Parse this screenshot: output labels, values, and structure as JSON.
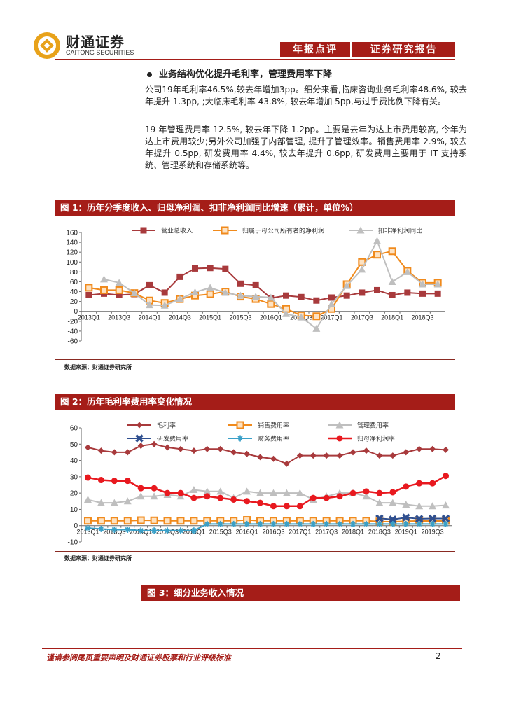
{
  "header": {
    "company_name": "财通证券",
    "company_sub": "CAITONG SECURITIES",
    "tag_left": "年报点评",
    "tag_right": "证券研究报告"
  },
  "section": {
    "heading": "业务结构优化提升毛利率，管理费用率下降",
    "para1": "公司19年毛利率46.5%,较去年增加3pp。细分来看,临床咨询业务毛利率48.6%, 较去年提升 1.3pp, ;大临床毛利率 43.8%, 较去年增加 5pp,与过手费比例下降有关。",
    "para2": "19 年管理费用率 12.5%, 较去年下降 1.2pp。主要是去年为达上市费用较高, 今年为达上市费用较少;另外公司加强了内部管理, 提升了管理效率。销售费用率 2.9%, 较去年提升 0.5pp, 研发费用率 4.4%, 较去年提升 0.6pp, 研发费用主要用于 IT 支持系统、管理系统和存储系统等。"
  },
  "figure1": {
    "title": "图 1：历年分季度收入、归母净利润、扣非净利润同比增速（累计，单位%）",
    "source": "数据来源：财通证券研究所"
  },
  "figure2": {
    "title": "图 2：历年毛利率费用率变化情况",
    "source": "数据来源：财通证券研究所"
  },
  "figure3": {
    "title": "图 3：细分业务收入情况"
  },
  "footer": {
    "disclaimer": "谨请参阅尾页重要声明及财通证券股票和行业评级标准",
    "page": "2"
  },
  "colors": {
    "brand": "#a51d18",
    "revenue": "#a83a3c",
    "netprofit": "#f08a1c",
    "gray": "#bfbfbf",
    "rd": "#2f4f8f",
    "finance": "#3aa0c8",
    "red": "#e8191f"
  },
  "chart_data": [
    {
      "type": "line",
      "title": "历年分季度收入、归母净利润、扣非净利润同比增速（累计，单位%）",
      "xlabel": "",
      "ylabel": "",
      "ylim": [
        -60,
        160
      ],
      "yticks": [
        -60,
        -40,
        -20,
        0,
        20,
        40,
        60,
        80,
        100,
        120,
        140,
        160
      ],
      "categories": [
        "2013Q1",
        "2013Q2",
        "2013Q3",
        "2013Q4",
        "2014Q1",
        "2014Q2",
        "2014Q3",
        "2014Q4",
        "2015Q1",
        "2015Q2",
        "2015Q3",
        "2015Q4",
        "2016Q1",
        "2016Q2",
        "2016Q3",
        "2016Q4",
        "2017Q1",
        "2017Q2",
        "2017Q3",
        "2017Q4",
        "2018Q1",
        "2018Q2",
        "2018Q3",
        "2018Q4"
      ],
      "tick_labels": [
        "2013Q1",
        "",
        "2013Q3",
        "",
        "2014Q1",
        "",
        "2014Q3",
        "",
        "2015Q1",
        "",
        "2015Q3",
        "",
        "2016Q1",
        "",
        "2016Q3",
        "",
        "2017Q1",
        "",
        "2017Q3",
        "",
        "2018Q1",
        "",
        "2018Q3",
        ""
      ],
      "series": [
        {
          "name": "营业总收入",
          "marker": "square",
          "values": [
            33,
            36,
            33,
            35,
            53,
            38,
            70,
            87,
            88,
            86,
            56,
            53,
            27,
            32,
            29,
            22,
            28,
            32,
            38,
            43,
            33,
            38,
            36,
            36
          ]
        },
        {
          "name": "归属于母公司所有者的净利润",
          "marker": "square-open",
          "values": [
            48,
            43,
            43,
            37,
            22,
            17,
            25,
            32,
            35,
            40,
            30,
            25,
            15,
            5,
            -8,
            -10,
            5,
            55,
            100,
            115,
            122,
            82,
            58,
            58
          ]
        },
        {
          "name": "扣非净利润同比",
          "marker": "triangle",
          "values": [
            null,
            65,
            58,
            37,
            13,
            12,
            25,
            39,
            48,
            38,
            32,
            30,
            28,
            -5,
            -12,
            -35,
            15,
            52,
            85,
            143,
            60,
            80,
            55,
            55
          ]
        }
      ]
    },
    {
      "type": "line",
      "title": "历年毛利率费用率变化情况",
      "xlabel": "",
      "ylabel": "",
      "ylim": [
        -10,
        60
      ],
      "yticks": [
        -10,
        0,
        10,
        20,
        30,
        40,
        50,
        60
      ],
      "categories": [
        "2013Q1",
        "2013Q2",
        "2013Q3",
        "2013Q4",
        "2014Q1",
        "2014Q2",
        "2014Q3",
        "2014Q4",
        "2015Q1",
        "2015Q2",
        "2015Q3",
        "2015Q4",
        "2016Q1",
        "2016Q2",
        "2016Q3",
        "2016Q4",
        "2017Q1",
        "2017Q2",
        "2017Q3",
        "2017Q4",
        "2018Q1",
        "2018Q2",
        "2018Q3",
        "2018Q4",
        "2019Q1",
        "2019Q2",
        "2019Q3",
        "2019Q4"
      ],
      "tick_labels": [
        "2013Q1",
        "",
        "2013Q3",
        "",
        "2014Q1",
        "",
        "2014Q3",
        "",
        "2015Q1",
        "",
        "2015Q3",
        "",
        "2016Q1",
        "",
        "2016Q3",
        "",
        "2017Q1",
        "",
        "2017Q3",
        "",
        "2018Q1",
        "",
        "2018Q3",
        "",
        "2019Q1",
        "",
        "2019Q3",
        ""
      ],
      "series": [
        {
          "name": "毛利率",
          "marker": "diamond",
          "values": [
            48,
            46,
            45,
            45,
            49,
            50,
            48,
            47,
            46,
            47,
            47,
            45,
            44,
            42,
            41,
            38,
            43,
            43,
            43,
            43,
            45,
            46,
            43,
            43,
            45,
            47,
            47,
            46.5
          ]
        },
        {
          "name": "销售费用率",
          "marker": "square-open",
          "values": [
            3,
            3,
            3,
            3,
            3.3,
            3.2,
            3,
            3,
            3,
            3,
            3,
            3,
            3.5,
            3,
            3,
            3,
            3,
            3,
            3,
            3,
            3,
            3,
            2.6,
            2.4,
            2.8,
            2.9,
            2.9,
            2.9
          ]
        },
        {
          "name": "管理费用率",
          "marker": "triangle",
          "values": [
            16,
            14,
            14,
            15,
            18,
            18,
            19,
            18,
            22,
            21,
            21,
            17,
            21,
            20,
            20,
            20,
            20,
            16,
            18,
            20,
            20,
            18,
            14,
            14,
            13,
            12,
            12,
            12.5
          ]
        },
        {
          "name": "研发费用率",
          "marker": "x",
          "values": [
            null,
            null,
            null,
            null,
            null,
            null,
            null,
            null,
            null,
            null,
            null,
            null,
            null,
            null,
            null,
            null,
            null,
            null,
            null,
            null,
            null,
            null,
            4.5,
            3.8,
            5,
            4.2,
            4.4,
            4.4
          ]
        },
        {
          "name": "财务费用率",
          "marker": "star",
          "values": [
            -1.5,
            -2,
            -2.5,
            -2.5,
            -3,
            -3,
            -3,
            -3,
            -3,
            1,
            1,
            1,
            1,
            1,
            1,
            1,
            1,
            1,
            1,
            1,
            1,
            1,
            1,
            1,
            1,
            1,
            1,
            1
          ]
        },
        {
          "name": "归母净利润率",
          "marker": "circle",
          "values": [
            29.5,
            28,
            27.5,
            27.5,
            23,
            23,
            20,
            20,
            17,
            18,
            17,
            16,
            15,
            14,
            12,
            12,
            12,
            17,
            17,
            18,
            20,
            21,
            20,
            20.5,
            24,
            26,
            26,
            30.5
          ]
        }
      ]
    }
  ]
}
